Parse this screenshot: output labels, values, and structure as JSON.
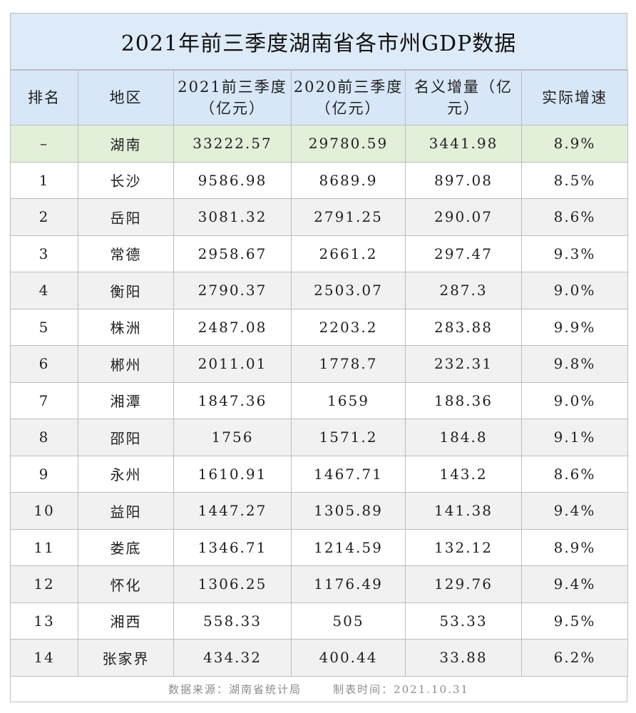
{
  "title": "2021年前三季度湖南省各市州GDP数据",
  "headers": [
    "排名",
    "地区",
    "2021前三季度（亿元）",
    "2020前三季度（亿元）",
    "名义增量（亿元）",
    "实际增速"
  ],
  "rows": [
    [
      "–",
      "湖南",
      "33222.57",
      "29780.59",
      "3441.98",
      "8.9%"
    ],
    [
      "1",
      "长沙",
      "9586.98",
      "8689.9",
      "897.08",
      "8.5%"
    ],
    [
      "2",
      "岳阳",
      "3081.32",
      "2791.25",
      "290.07",
      "8.6%"
    ],
    [
      "3",
      "常德",
      "2958.67",
      "2661.2",
      "297.47",
      "9.3%"
    ],
    [
      "4",
      "衡阳",
      "2790.37",
      "2503.07",
      "287.3",
      "9.0%"
    ],
    [
      "5",
      "株洲",
      "2487.08",
      "2203.2",
      "283.88",
      "9.9%"
    ],
    [
      "6",
      "郴州",
      "2011.01",
      "1778.7",
      "232.31",
      "9.8%"
    ],
    [
      "7",
      "湘潭",
      "1847.36",
      "1659",
      "188.36",
      "9.0%"
    ],
    [
      "8",
      "邵阳",
      "1756",
      "1571.2",
      "184.8",
      "9.1%"
    ],
    [
      "9",
      "永州",
      "1610.91",
      "1467.71",
      "143.2",
      "8.6%"
    ],
    [
      "10",
      "益阳",
      "1447.27",
      "1305.89",
      "141.38",
      "9.4%"
    ],
    [
      "11",
      "娄底",
      "1346.71",
      "1214.59",
      "132.12",
      "8.9%"
    ],
    [
      "12",
      "怀化",
      "1306.25",
      "1176.49",
      "129.76",
      "9.4%"
    ],
    [
      "13",
      "湘西",
      "558.33",
      "505",
      "53.33",
      "9.5%"
    ],
    [
      "14",
      "张家界",
      "434.32",
      "400.44",
      "33.88",
      "6.2%"
    ]
  ],
  "footer": {
    "source": "数据来源：湖南省统计局",
    "date": "制表时间：2021.10.31"
  },
  "colors": {
    "title_bg": "#ddeaf7",
    "header_bg": "#d7e7f7",
    "total_row_bg": "#e2efd9",
    "alt_row_bg": "#f1f1f1",
    "footer_text": "#8c8c8c"
  }
}
